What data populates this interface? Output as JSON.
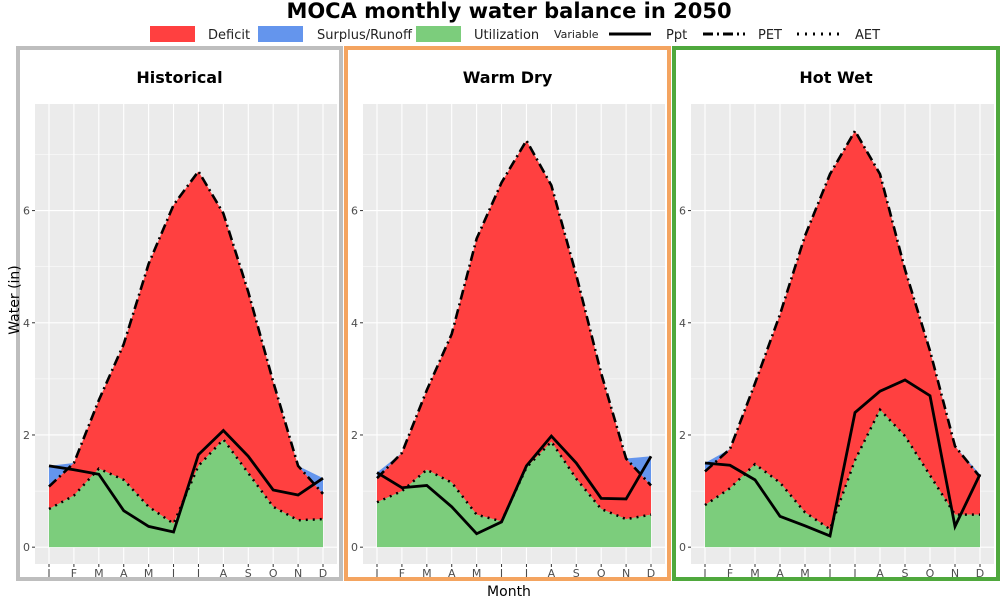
{
  "chart_data": {
    "type": "area",
    "title": "MOCA monthly water balance in 2050",
    "xlabel": "Month",
    "ylabel": "Water (in)",
    "ylim": [
      -0.3,
      7.9
    ],
    "yticks": [
      0,
      2,
      4,
      6
    ],
    "categories": [
      "J",
      "F",
      "M",
      "A",
      "M",
      "J",
      "J",
      "A",
      "S",
      "O",
      "N",
      "D"
    ],
    "grid": true,
    "legend_position": "top",
    "legend": {
      "fill_items": [
        {
          "label": "Deficit",
          "color": "#ff4040"
        },
        {
          "label": "Surplus/Runoff",
          "color": "#6495ed"
        },
        {
          "label": "Utilization",
          "color": "#7ccd7c"
        }
      ],
      "variable_label": "Variable",
      "line_items": [
        {
          "label": "Ppt",
          "style": "solid"
        },
        {
          "label": "PET",
          "style": "dashdot"
        },
        {
          "label": "AET",
          "style": "dotted"
        }
      ]
    },
    "panels": [
      {
        "title": "Historical",
        "border_color": "#bebebe",
        "ppt": [
          1.45,
          1.38,
          1.3,
          0.65,
          0.37,
          0.27,
          1.65,
          2.08,
          1.62,
          1.02,
          0.93,
          1.23
        ],
        "pet": [
          1.08,
          1.5,
          2.62,
          3.62,
          5.05,
          6.1,
          6.7,
          5.95,
          4.55,
          2.95,
          1.45,
          0.95
        ],
        "aet": [
          0.68,
          0.92,
          1.4,
          1.2,
          0.72,
          0.42,
          1.45,
          1.92,
          1.32,
          0.72,
          0.48,
          0.5
        ]
      },
      {
        "title": "Warm Dry",
        "border_color": "#f4a460",
        "ppt": [
          1.33,
          1.06,
          1.1,
          0.72,
          0.24,
          0.45,
          1.45,
          1.98,
          1.5,
          0.87,
          0.86,
          1.62
        ],
        "pet": [
          1.23,
          1.68,
          2.8,
          3.8,
          5.5,
          6.5,
          7.25,
          6.45,
          4.85,
          3.1,
          1.58,
          1.1
        ],
        "aet": [
          0.8,
          1.0,
          1.38,
          1.15,
          0.58,
          0.46,
          1.42,
          1.88,
          1.22,
          0.68,
          0.5,
          0.58
        ]
      },
      {
        "title": "Hot Wet",
        "border_color": "#4fa83d",
        "ppt": [
          1.5,
          1.46,
          1.2,
          0.55,
          0.38,
          0.2,
          2.4,
          2.78,
          2.98,
          2.7,
          0.37,
          1.3
        ],
        "pet": [
          1.35,
          1.75,
          2.92,
          4.15,
          5.55,
          6.65,
          7.42,
          6.65,
          4.95,
          3.5,
          1.8,
          1.25
        ],
        "aet": [
          0.75,
          1.05,
          1.48,
          1.15,
          0.62,
          0.32,
          1.55,
          2.45,
          1.98,
          1.28,
          0.58,
          0.58
        ]
      }
    ]
  }
}
